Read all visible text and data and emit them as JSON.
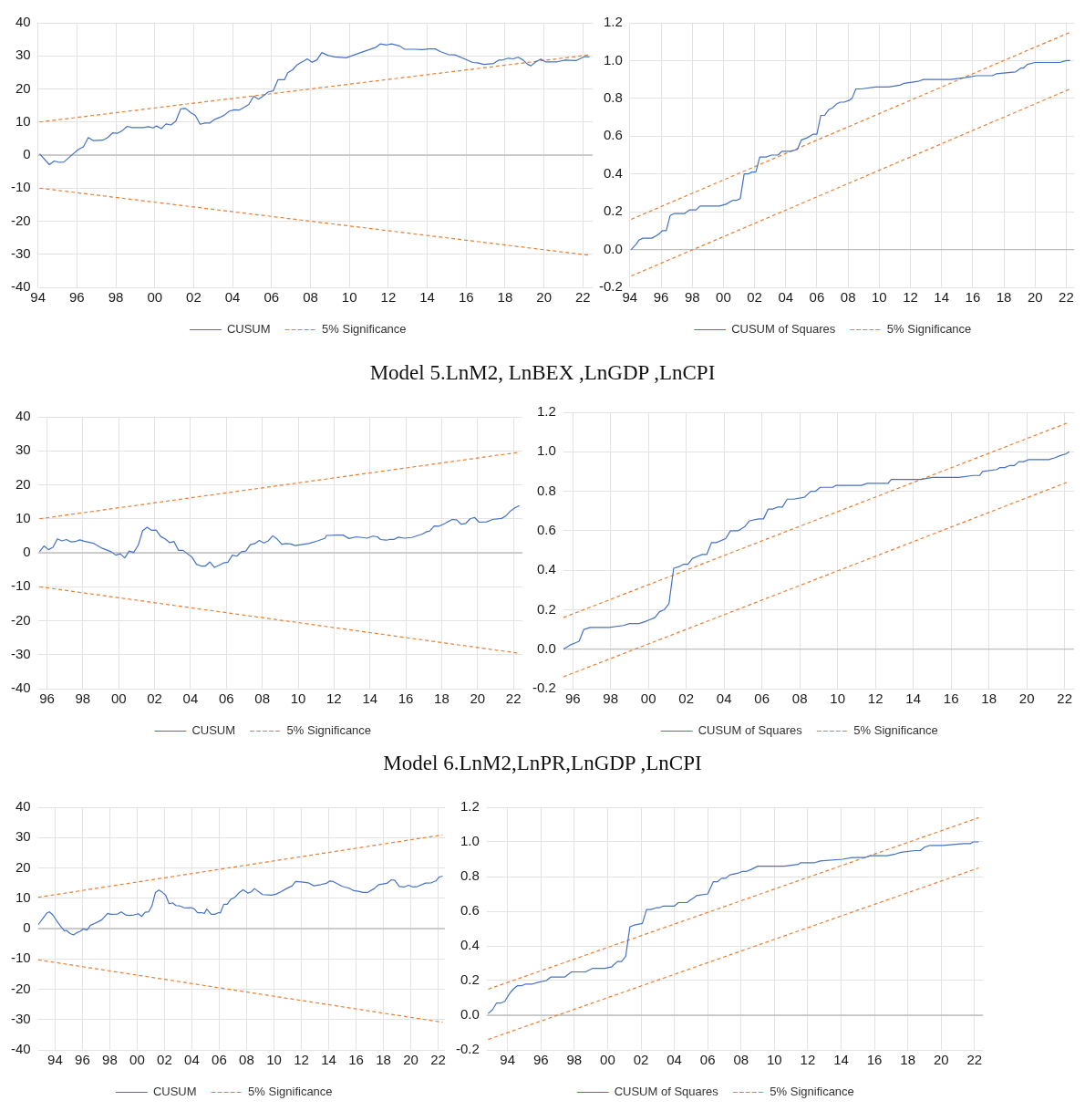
{
  "chart_data": [
    {
      "type": "line",
      "x": [
        "1994-08",
        "1995-02",
        "1995-05",
        "1995-08",
        "1995-11",
        "1996-04",
        "1996-08",
        "1996-11",
        "1997-02",
        "1997-05",
        "1997-11",
        "1998-02",
        "1998-05",
        "1998-08",
        "1998-11",
        "1999-02",
        "1999-05",
        "1999-12",
        "2000-03",
        "2000-06",
        "2000-08",
        "2000-11",
        "2001-02",
        "2001-05",
        "2001-08",
        "2001-11",
        "2002-02",
        "2002-05",
        "2002-08",
        "2002-11",
        "2003-02",
        "2003-05",
        "2003-08",
        "2003-11",
        "2004-02",
        "2004-05",
        "2004-08",
        "2004-11",
        "2005-02",
        "2005-05",
        "2005-08",
        "2005-11",
        "2006-02",
        "2006-05",
        "2006-08",
        "2006-11",
        "2007-03",
        "2007-05",
        "2007-08",
        "2007-11",
        "2008-03",
        "2008-05",
        "2008-08",
        "2008-11",
        "2009-02",
        "2009-06",
        "2009-10",
        "2010-05",
        "2010-09",
        "2011-02",
        "2011-11",
        "2012-02",
        "2012-06",
        "2012-09",
        "2013-02",
        "2013-05",
        "2013-11",
        "2014-04",
        "2014-08",
        "2014-12",
        "2015-03",
        "2015-08",
        "2015-12",
        "2016-05",
        "2016-11",
        "2017-02",
        "2017-06",
        "2017-12",
        "2018-03",
        "2018-05",
        "2018-09",
        "2018-12",
        "2019-03",
        "2019-06",
        "2019-09",
        "2019-11",
        "2020-02",
        "2020-05",
        "2020-08",
        "2021-03",
        "2021-08",
        "2022-03",
        "2022-08",
        "2022-11"
      ],
      "series": [
        {
          "name": "CUSUM",
          "color": "#4472c4",
          "line_style": "solid",
          "values": [
            0.4,
            -2.9,
            -1.8,
            -2.2,
            -2.1,
            0.1,
            1.7,
            2.5,
            5.3,
            4.4,
            4.5,
            5.3,
            6.7,
            6.6,
            7.4,
            8.7,
            8.3,
            8.3,
            8.6,
            8.2,
            8.8,
            8.0,
            9.4,
            9.1,
            10.3,
            14.0,
            14.1,
            12.9,
            12.0,
            9.3,
            9.7,
            9.7,
            10.8,
            11.4,
            12.1,
            13.3,
            13.7,
            13.6,
            14.4,
            15.3,
            17.8,
            16.9,
            17.9,
            19.1,
            19.4,
            22.8,
            22.8,
            24.9,
            25.8,
            27.4,
            28.5,
            29.1,
            28.1,
            28.8,
            31.0,
            30.1,
            29.7,
            29.4,
            30.1,
            31.0,
            32.5,
            33.6,
            33.3,
            33.6,
            33.0,
            32.0,
            32.0,
            31.9,
            32.1,
            32.1,
            31.3,
            30.4,
            30.3,
            29.3,
            28.0,
            27.9,
            27.4,
            27.7,
            28.7,
            28.7,
            29.3,
            29.1,
            29.6,
            28.8,
            27.4,
            27.0,
            28.2,
            29.0,
            28.2,
            28.2,
            28.7,
            28.6,
            29.8,
            29.7
          ]
        },
        {
          "name": "5% Significance",
          "color": "#ed7d31",
          "line_style": "dashed",
          "x": [
            "1994-08",
            "2022-11"
          ],
          "values": [
            10,
            30.3
          ]
        },
        {
          "color": "#ed7d31",
          "line_style": "dashed",
          "x": [
            "1994-08",
            "2022-11"
          ],
          "values": [
            -10,
            -30.3
          ]
        }
      ],
      "xlim": [
        "1994-07",
        "2023-01"
      ],
      "xticks": [
        {
          "value": "1994-07",
          "label": "94"
        },
        {
          "value": "1996-07",
          "label": "96"
        },
        {
          "value": "1998-07",
          "label": "98"
        },
        {
          "value": "2000-07",
          "label": "00"
        },
        {
          "value": "2002-07",
          "label": "02"
        },
        {
          "value": "2004-07",
          "label": "04"
        },
        {
          "value": "2006-07",
          "label": "06"
        },
        {
          "value": "2008-07",
          "label": "08"
        },
        {
          "value": "2010-07",
          "label": "10"
        },
        {
          "value": "2012-07",
          "label": "12"
        },
        {
          "value": "2014-07",
          "label": "14"
        },
        {
          "value": "2016-07",
          "label": "16"
        },
        {
          "value": "2018-07",
          "label": "18"
        },
        {
          "value": "2020-07",
          "label": "20"
        },
        {
          "value": "2022-07",
          "label": "22"
        }
      ],
      "ylim": [
        -40,
        40
      ],
      "yticks": [
        -40,
        -30,
        -20,
        -10,
        0,
        10,
        20,
        30,
        40
      ],
      "grid": true,
      "legend": "bottom",
      "ref_lines": [
        {
          "axis": "y",
          "value": 0,
          "color": "#bfbfbf"
        }
      ]
    },
    {
      "type": "line",
      "x": [
        "1994-08",
        "1994-12",
        "1995-02",
        "1995-05",
        "1995-12",
        "1996-05",
        "1996-08",
        "1996-11",
        "1997-02",
        "1997-05",
        "1998-01",
        "1998-05",
        "1998-10",
        "1999-01",
        "2000-04",
        "2000-09",
        "2001-02",
        "2001-05",
        "2001-08",
        "2001-11",
        "2002-02",
        "2002-05",
        "2002-08",
        "2002-11",
        "2003-04",
        "2003-08",
        "2004-01",
        "2004-04",
        "2004-11",
        "2005-04",
        "2005-07",
        "2005-11",
        "2006-04",
        "2006-07",
        "2006-10",
        "2007-01",
        "2007-04",
        "2007-07",
        "2007-10",
        "2008-01",
        "2008-04",
        "2008-08",
        "2008-10",
        "2009-01",
        "2009-05",
        "2010-04",
        "2011-02",
        "2011-11",
        "2012-02",
        "2013-01",
        "2013-05",
        "2014-11",
        "2015-02",
        "2016-01",
        "2016-10",
        "2017-10",
        "2018-01",
        "2019-04",
        "2019-08",
        "2019-10",
        "2020-01",
        "2020-07",
        "2021-04",
        "2022-02",
        "2022-07",
        "2022-10"
      ],
      "series": [
        {
          "name": "CUSUM of Squares",
          "color": "#4472c4",
          "line_style": "solid",
          "values": [
            0,
            0.03,
            0.05,
            0.06,
            0.06,
            0.08,
            0.1,
            0.1,
            0.18,
            0.19,
            0.19,
            0.21,
            0.21,
            0.23,
            0.23,
            0.24,
            0.26,
            0.26,
            0.27,
            0.4,
            0.4,
            0.41,
            0.41,
            0.49,
            0.49,
            0.5,
            0.5,
            0.52,
            0.52,
            0.53,
            0.58,
            0.59,
            0.61,
            0.61,
            0.71,
            0.71,
            0.74,
            0.75,
            0.77,
            0.78,
            0.78,
            0.79,
            0.8,
            0.85,
            0.85,
            0.86,
            0.86,
            0.87,
            0.88,
            0.89,
            0.9,
            0.9,
            0.9,
            0.91,
            0.92,
            0.92,
            0.93,
            0.94,
            0.96,
            0.96,
            0.98,
            0.99,
            0.99,
            0.99,
            1.0,
            1.0
          ]
        },
        {
          "name": "5% Significance",
          "color": "#ed7d31",
          "line_style": "dashed",
          "x": [
            "1994-08",
            "2022-10"
          ],
          "values": [
            0.16,
            1.15
          ]
        },
        {
          "color": "#ed7d31",
          "line_style": "dashed",
          "x": [
            "1994-08",
            "2022-10"
          ],
          "values": [
            -0.14,
            0.85
          ]
        }
      ],
      "xlim": [
        "1994-07",
        "2023-01"
      ],
      "xticks": [
        {
          "value": "1994-07",
          "label": "94"
        },
        {
          "value": "1996-07",
          "label": "96"
        },
        {
          "value": "1998-07",
          "label": "98"
        },
        {
          "value": "2000-07",
          "label": "00"
        },
        {
          "value": "2002-07",
          "label": "02"
        },
        {
          "value": "2004-07",
          "label": "04"
        },
        {
          "value": "2006-07",
          "label": "06"
        },
        {
          "value": "2008-07",
          "label": "08"
        },
        {
          "value": "2010-07",
          "label": "10"
        },
        {
          "value": "2012-07",
          "label": "12"
        },
        {
          "value": "2014-07",
          "label": "14"
        },
        {
          "value": "2016-07",
          "label": "16"
        },
        {
          "value": "2018-07",
          "label": "18"
        },
        {
          "value": "2020-07",
          "label": "20"
        },
        {
          "value": "2022-07",
          "label": "22"
        }
      ],
      "ylim": [
        -0.2,
        1.2
      ],
      "yticks": [
        {
          "value": -0.2,
          "label": "-0.2"
        },
        {
          "value": 0,
          "label": "0.0"
        },
        {
          "value": 0.2,
          "label": "0.2"
        },
        {
          "value": 0.4,
          "label": "0.4"
        },
        {
          "value": 0.6,
          "label": "0.6"
        },
        {
          "value": 0.8,
          "label": "0.8"
        },
        {
          "value": 1,
          "label": "1.0"
        },
        {
          "value": 1.2,
          "label": "1.2"
        }
      ],
      "grid": true,
      "legend": "bottom",
      "ref_lines": [
        {
          "axis": "y",
          "value": 0,
          "color": "#bfbfbf"
        }
      ]
    },
    {
      "type": "line",
      "title": "Model 5.LnM2, LnBEX ,LnGDP ,LnCPI",
      "x": [
        "1996-02",
        "1996-05",
        "1996-08",
        "1996-11",
        "1997-02",
        "1997-05",
        "1997-08",
        "1997-11",
        "1998-02",
        "1998-05",
        "1998-08",
        "1999-02",
        "1999-08",
        "2000-02",
        "2000-05",
        "2000-08",
        "2000-11",
        "2001-02",
        "2001-05",
        "2001-08",
        "2001-11",
        "2002-02",
        "2002-05",
        "2002-08",
        "2002-11",
        "2003-02",
        "2003-05",
        "2003-08",
        "2003-11",
        "2004-02",
        "2004-05",
        "2004-08",
        "2004-11",
        "2005-02",
        "2005-05",
        "2005-08",
        "2005-11",
        "2006-02",
        "2006-05",
        "2006-08",
        "2006-11",
        "2007-02",
        "2007-05",
        "2007-08",
        "2007-11",
        "2008-02",
        "2008-05",
        "2008-08",
        "2008-11",
        "2009-02",
        "2009-05",
        "2009-08",
        "2009-11",
        "2010-02",
        "2010-05",
        "2010-09",
        "2011-02",
        "2011-08",
        "2012-01",
        "2012-02",
        "2012-10",
        "2013-01",
        "2013-05",
        "2013-10",
        "2014-05",
        "2014-09",
        "2014-12",
        "2015-02",
        "2015-06",
        "2015-08",
        "2015-11",
        "2016-02",
        "2016-06",
        "2016-11",
        "2017-06",
        "2017-09",
        "2017-11",
        "2018-02",
        "2018-05",
        "2018-09",
        "2018-11",
        "2019-02",
        "2019-05",
        "2019-08",
        "2019-11",
        "2020-02",
        "2020-05",
        "2020-08",
        "2021-01",
        "2021-05",
        "2021-11",
        "2022-02",
        "2022-05",
        "2022-08",
        "2022-11"
      ],
      "series": [
        {
          "name": "CUSUM",
          "color": "#4472c4",
          "line_style": "solid",
          "values": [
            0.3,
            2.0,
            0.9,
            1.6,
            4.1,
            3.5,
            3.9,
            3.2,
            3.3,
            3.8,
            3.4,
            2.8,
            1.3,
            0.3,
            -0.7,
            -0.3,
            -1.5,
            0.5,
            0.1,
            2.2,
            6.5,
            7.5,
            6.6,
            6.7,
            4.8,
            4.1,
            3.0,
            3.3,
            0.7,
            0.7,
            -0.3,
            -1.3,
            -3.4,
            -3.9,
            -3.9,
            -2.7,
            -4.3,
            -3.7,
            -3.0,
            -2.8,
            -0.7,
            -1.0,
            0.3,
            0.5,
            2.4,
            2.7,
            3.6,
            2.9,
            3.5,
            5.0,
            4.0,
            2.5,
            2.7,
            2.6,
            2.1,
            2.4,
            2.7,
            3.5,
            4.3,
            5.1,
            5.2,
            5.2,
            4.2,
            4.7,
            4.3,
            4.9,
            4.7,
            3.9,
            3.7,
            3.9,
            3.9,
            4.6,
            4.3,
            4.5,
            5.5,
            6.2,
            6.4,
            7.9,
            7.8,
            8.6,
            9.1,
            9.8,
            9.7,
            8.4,
            8.6,
            10.0,
            10.4,
            9.0,
            9.1,
            9.8,
            10.1,
            10.9,
            12.3,
            13.2,
            13.9
          ]
        },
        {
          "name": "5% Significance",
          "color": "#ed7d31",
          "line_style": "dashed",
          "x": [
            "1996-02",
            "2022-11"
          ],
          "values": [
            10,
            29.6
          ]
        },
        {
          "color": "#ed7d31",
          "line_style": "dashed",
          "x": [
            "1996-02",
            "2022-11"
          ],
          "values": [
            -10,
            -29.6
          ]
        }
      ],
      "xlim": [
        "1996-01",
        "2023-01"
      ],
      "xticks": [
        {
          "value": "1996-07",
          "label": "96"
        },
        {
          "value": "1998-07",
          "label": "98"
        },
        {
          "value": "2000-07",
          "label": "00"
        },
        {
          "value": "2002-07",
          "label": "02"
        },
        {
          "value": "2004-07",
          "label": "04"
        },
        {
          "value": "2006-07",
          "label": "06"
        },
        {
          "value": "2008-07",
          "label": "08"
        },
        {
          "value": "2010-07",
          "label": "10"
        },
        {
          "value": "2012-07",
          "label": "12"
        },
        {
          "value": "2014-07",
          "label": "14"
        },
        {
          "value": "2016-07",
          "label": "16"
        },
        {
          "value": "2018-07",
          "label": "18"
        },
        {
          "value": "2020-07",
          "label": "20"
        },
        {
          "value": "2022-07",
          "label": "22"
        }
      ],
      "ylim": [
        -40,
        40
      ],
      "yticks": [
        -40,
        -30,
        -20,
        -10,
        0,
        10,
        20,
        30,
        40
      ],
      "grid": true,
      "legend": "bottom",
      "ref_lines": [
        {
          "axis": "y",
          "value": 0,
          "color": "#bfbfbf"
        }
      ]
    },
    {
      "type": "line",
      "x": [
        "1996-01",
        "1996-05",
        "1996-08",
        "1996-11",
        "1997-02",
        "1997-06",
        "1997-10",
        "1998-06",
        "1999-03",
        "1999-07",
        "2000-01",
        "2000-05",
        "2000-08",
        "2000-11",
        "2001-02",
        "2001-05",
        "2001-08",
        "2001-11",
        "2002-03",
        "2002-05",
        "2002-08",
        "2002-11",
        "2003-02",
        "2003-05",
        "2003-08",
        "2003-11",
        "2004-02",
        "2004-08",
        "2004-11",
        "2005-04",
        "2005-08",
        "2005-11",
        "2006-05",
        "2006-08",
        "2006-11",
        "2007-02",
        "2007-05",
        "2007-08",
        "2007-11",
        "2008-03",
        "2008-10",
        "2009-02",
        "2009-05",
        "2009-08",
        "2010-04",
        "2010-06",
        "2011-10",
        "2012-02",
        "2013-03",
        "2013-05",
        "2014-12",
        "2015-07",
        "2016-12",
        "2017-09",
        "2018-01",
        "2018-03",
        "2018-12",
        "2019-02",
        "2019-05",
        "2019-08",
        "2019-11",
        "2020-02",
        "2020-05",
        "2020-08",
        "2021-09",
        "2022-01",
        "2022-04",
        "2022-08",
        "2022-10"
      ],
      "series": [
        {
          "name": "CUSUM of Squares",
          "color": "#4472c4",
          "line_style": "solid",
          "values": [
            0,
            0.02,
            0.03,
            0.04,
            0.1,
            0.11,
            0.11,
            0.11,
            0.12,
            0.13,
            0.13,
            0.14,
            0.15,
            0.16,
            0.19,
            0.2,
            0.23,
            0.41,
            0.42,
            0.43,
            0.43,
            0.46,
            0.47,
            0.48,
            0.48,
            0.54,
            0.54,
            0.56,
            0.6,
            0.6,
            0.62,
            0.65,
            0.66,
            0.66,
            0.71,
            0.71,
            0.72,
            0.72,
            0.76,
            0.76,
            0.77,
            0.8,
            0.8,
            0.82,
            0.82,
            0.83,
            0.83,
            0.84,
            0.84,
            0.86,
            0.86,
            0.87,
            0.87,
            0.88,
            0.88,
            0.9,
            0.91,
            0.92,
            0.92,
            0.93,
            0.93,
            0.95,
            0.95,
            0.96,
            0.96,
            0.97,
            0.98,
            0.99,
            1.0
          ]
        },
        {
          "name": "5% Significance",
          "color": "#ed7d31",
          "line_style": "dashed",
          "x": [
            "1996-01",
            "2022-10"
          ],
          "values": [
            0.16,
            1.15
          ]
        },
        {
          "color": "#ed7d31",
          "line_style": "dashed",
          "x": [
            "1996-01",
            "2022-10"
          ],
          "values": [
            -0.14,
            0.85
          ]
        }
      ],
      "xlim": [
        "1996-01",
        "2023-01"
      ],
      "xticks": [
        {
          "value": "1996-07",
          "label": "96"
        },
        {
          "value": "1998-07",
          "label": "98"
        },
        {
          "value": "2000-07",
          "label": "00"
        },
        {
          "value": "2002-07",
          "label": "02"
        },
        {
          "value": "2004-07",
          "label": "04"
        },
        {
          "value": "2006-07",
          "label": "06"
        },
        {
          "value": "2008-07",
          "label": "08"
        },
        {
          "value": "2010-07",
          "label": "10"
        },
        {
          "value": "2012-07",
          "label": "12"
        },
        {
          "value": "2014-07",
          "label": "14"
        },
        {
          "value": "2016-07",
          "label": "16"
        },
        {
          "value": "2018-07",
          "label": "18"
        },
        {
          "value": "2020-07",
          "label": "20"
        },
        {
          "value": "2022-07",
          "label": "22"
        }
      ],
      "ylim": [
        -0.2,
        1.2
      ],
      "yticks": [
        {
          "value": -0.2,
          "label": "-0.2"
        },
        {
          "value": 0,
          "label": "0.0"
        },
        {
          "value": 0.2,
          "label": "0.2"
        },
        {
          "value": 0.4,
          "label": "0.4"
        },
        {
          "value": 0.6,
          "label": "0.6"
        },
        {
          "value": 0.8,
          "label": "0.8"
        },
        {
          "value": 1,
          "label": "1.0"
        },
        {
          "value": 1.2,
          "label": "1.2"
        }
      ],
      "grid": true,
      "legend": "bottom",
      "ref_lines": [
        {
          "axis": "y",
          "value": 0,
          "color": "#bfbfbf"
        }
      ]
    },
    {
      "type": "line",
      "x": [
        "1993-04",
        "1993-08",
        "1993-12",
        "1994-02",
        "1994-05",
        "1994-09",
        "1994-12",
        "1995-03",
        "1995-05",
        "1995-08",
        "1995-11",
        "1996-02",
        "1996-05",
        "1996-08",
        "1996-11",
        "1997-02",
        "1997-05",
        "1997-09",
        "1997-12",
        "1998-05",
        "1998-08",
        "1999-02",
        "1999-05",
        "1999-09",
        "1999-12",
        "2000-04",
        "2000-08",
        "2000-11",
        "2001-02",
        "2001-05",
        "2001-08",
        "2001-11",
        "2002-02",
        "2002-05",
        "2002-08",
        "2002-11",
        "2003-02",
        "2003-05",
        "2003-08",
        "2003-12",
        "2004-03",
        "2004-06",
        "2004-09",
        "2004-12",
        "2005-04",
        "2005-06",
        "2005-08",
        "2005-12",
        "2006-03",
        "2006-06",
        "2006-08",
        "2006-11",
        "2007-02",
        "2007-05",
        "2007-09",
        "2007-12",
        "2008-04",
        "2008-08",
        "2008-11",
        "2009-02",
        "2009-05",
        "2009-09",
        "2010-05",
        "2010-09",
        "2011-01",
        "2011-06",
        "2011-11",
        "2012-02",
        "2012-09",
        "2013-01",
        "2013-06",
        "2013-12",
        "2014-05",
        "2014-08",
        "2014-11",
        "2015-07",
        "2016-01",
        "2016-05",
        "2016-09",
        "2017-01",
        "2017-05",
        "2017-11",
        "2018-03",
        "2018-10",
        "2019-02",
        "2019-05",
        "2019-09",
        "2020-01",
        "2020-05",
        "2020-09",
        "2021-01",
        "2021-08",
        "2022-01",
        "2022-05",
        "2022-08",
        "2022-11"
      ],
      "series": [
        {
          "name": "CUSUM",
          "color": "#4472c4",
          "line_style": "solid",
          "values": [
            1.2,
            3.2,
            5.2,
            5.5,
            4.5,
            2.2,
            0.7,
            -0.7,
            -0.6,
            -1.6,
            -2.1,
            -1.4,
            -0.9,
            -0.1,
            -0.5,
            1.1,
            1.6,
            2.3,
            2.9,
            5.0,
            4.7,
            4.8,
            5.5,
            4.5,
            4.3,
            4.5,
            4.9,
            4.0,
            5.4,
            5.5,
            7.5,
            11.9,
            12.7,
            12.0,
            11.0,
            8.2,
            8.5,
            7.6,
            7.5,
            6.9,
            6.8,
            6.9,
            6.5,
            5.2,
            5.2,
            5.0,
            6.4,
            4.7,
            4.7,
            5.2,
            5.2,
            8.0,
            8.0,
            9.6,
            10.4,
            11.7,
            12.8,
            11.7,
            12.1,
            13.2,
            12.3,
            11.2,
            11.0,
            11.4,
            12.1,
            13.2,
            14.1,
            15.5,
            15.3,
            15.1,
            14.1,
            14.5,
            14.9,
            15.7,
            15.5,
            13.9,
            13.3,
            12.5,
            12.3,
            11.9,
            11.9,
            13.2,
            14.5,
            14.9,
            16.1,
            15.9,
            13.9,
            13.7,
            14.3,
            13.7,
            13.9,
            15.0,
            15.1,
            15.7,
            17.0,
            17.3
          ]
        },
        {
          "name": "5% Significance",
          "color": "#ed7d31",
          "line_style": "dashed",
          "x": [
            "1993-04",
            "2022-11"
          ],
          "values": [
            10.3,
            30.9
          ]
        },
        {
          "color": "#ed7d31",
          "line_style": "dashed",
          "x": [
            "1993-04",
            "2022-11"
          ],
          "values": [
            -10.3,
            -30.9
          ]
        }
      ],
      "xlim": [
        "1993-04",
        "2023-01"
      ],
      "xticks": [
        {
          "value": "1994-07",
          "label": "94"
        },
        {
          "value": "1996-07",
          "label": "96"
        },
        {
          "value": "1998-07",
          "label": "98"
        },
        {
          "value": "2000-07",
          "label": "00"
        },
        {
          "value": "2002-07",
          "label": "02"
        },
        {
          "value": "2004-07",
          "label": "04"
        },
        {
          "value": "2006-07",
          "label": "06"
        },
        {
          "value": "2008-07",
          "label": "08"
        },
        {
          "value": "2010-07",
          "label": "10"
        },
        {
          "value": "2012-07",
          "label": "12"
        },
        {
          "value": "2014-07",
          "label": "14"
        },
        {
          "value": "2016-07",
          "label": "16"
        },
        {
          "value": "2018-07",
          "label": "18"
        },
        {
          "value": "2020-07",
          "label": "20"
        },
        {
          "value": "2022-07",
          "label": "22"
        }
      ],
      "ylim": [
        -40,
        40
      ],
      "yticks": [
        -40,
        -30,
        -20,
        -10,
        0,
        10,
        20,
        30,
        40
      ],
      "grid": true,
      "legend": "bottom",
      "ref_lines": [
        {
          "axis": "y",
          "value": 0,
          "color": "#bfbfbf"
        }
      ]
    },
    {
      "type": "line",
      "title": "Model 6.LnM2,LnPR,LnGDP ,LnCPI",
      "x": [
        "1993-05",
        "1993-08",
        "1993-11",
        "1994-02",
        "1994-05",
        "1994-08",
        "1994-11",
        "1995-02",
        "1995-05",
        "1995-08",
        "1996-01",
        "1996-05",
        "1996-11",
        "1997-02",
        "1997-05",
        "1997-12",
        "1998-05",
        "1999-03",
        "1999-08",
        "2000-05",
        "2000-10",
        "2001-02",
        "2001-05",
        "2001-08",
        "2001-11",
        "2002-02",
        "2002-08",
        "2002-11",
        "2003-02",
        "2003-06",
        "2003-08",
        "2003-11",
        "2004-07",
        "2004-10",
        "2005-04",
        "2005-11",
        "2006-07",
        "2006-11",
        "2007-02",
        "2007-05",
        "2007-08",
        "2007-11",
        "2008-05",
        "2008-08",
        "2008-11",
        "2009-02",
        "2009-07",
        "2010-05",
        "2011-02",
        "2011-12",
        "2012-02",
        "2012-12",
        "2013-04",
        "2014-08",
        "2015-03",
        "2015-12",
        "2016-04",
        "2017-04",
        "2017-10",
        "2018-02",
        "2018-12",
        "2019-04",
        "2019-07",
        "2019-11",
        "2020-08",
        "2021-11",
        "2022-04",
        "2022-06",
        "2022-10"
      ],
      "series": [
        {
          "name": "CUSUM of Squares",
          "color": "#4472c4",
          "line_style": "solid",
          "values": [
            0.01,
            0.03,
            0.07,
            0.07,
            0.08,
            0.12,
            0.15,
            0.17,
            0.17,
            0.18,
            0.18,
            0.19,
            0.2,
            0.22,
            0.22,
            0.22,
            0.25,
            0.25,
            0.27,
            0.27,
            0.28,
            0.31,
            0.31,
            0.34,
            0.51,
            0.52,
            0.53,
            0.61,
            0.61,
            0.62,
            0.62,
            0.63,
            0.63,
            0.65,
            0.65,
            0.69,
            0.7,
            0.77,
            0.77,
            0.79,
            0.79,
            0.81,
            0.82,
            0.83,
            0.83,
            0.84,
            0.86,
            0.86,
            0.86,
            0.87,
            0.88,
            0.88,
            0.89,
            0.9,
            0.91,
            0.91,
            0.92,
            0.92,
            0.93,
            0.94,
            0.95,
            0.95,
            0.97,
            0.98,
            0.98,
            0.99,
            0.99,
            1.0,
            1.0
          ]
        },
        {
          "name": "5% Significance",
          "color": "#ed7d31",
          "line_style": "dashed",
          "x": [
            "1993-05",
            "2022-10"
          ],
          "values": [
            0.15,
            1.14
          ]
        },
        {
          "color": "#ed7d31",
          "line_style": "dashed",
          "x": [
            "1993-05",
            "2022-10"
          ],
          "values": [
            -0.14,
            0.85
          ]
        }
      ],
      "xlim": [
        "1993-04",
        "2023-01"
      ],
      "xticks": [
        {
          "value": "1994-07",
          "label": "94"
        },
        {
          "value": "1996-07",
          "label": "96"
        },
        {
          "value": "1998-07",
          "label": "98"
        },
        {
          "value": "2000-07",
          "label": "00"
        },
        {
          "value": "2002-07",
          "label": "02"
        },
        {
          "value": "2004-07",
          "label": "04"
        },
        {
          "value": "2006-07",
          "label": "06"
        },
        {
          "value": "2008-07",
          "label": "08"
        },
        {
          "value": "2010-07",
          "label": "10"
        },
        {
          "value": "2012-07",
          "label": "12"
        },
        {
          "value": "2014-07",
          "label": "14"
        },
        {
          "value": "2016-07",
          "label": "16"
        },
        {
          "value": "2018-07",
          "label": "18"
        },
        {
          "value": "2020-07",
          "label": "20"
        },
        {
          "value": "2022-07",
          "label": "22"
        }
      ],
      "ylim": [
        -0.2,
        1.2
      ],
      "yticks": [
        {
          "value": -0.2,
          "label": "-0.2"
        },
        {
          "value": 0,
          "label": "0.0"
        },
        {
          "value": 0.2,
          "label": "0.2"
        },
        {
          "value": 0.4,
          "label": "0.4"
        },
        {
          "value": 0.6,
          "label": "0.6"
        },
        {
          "value": 0.8,
          "label": "0.8"
        },
        {
          "value": 1,
          "label": "1.0"
        },
        {
          "value": 1.2,
          "label": "1.2"
        }
      ],
      "grid": true,
      "legend": "bottom",
      "ref_lines": [
        {
          "axis": "y",
          "value": 0,
          "color": "#bfbfbf"
        }
      ]
    }
  ]
}
